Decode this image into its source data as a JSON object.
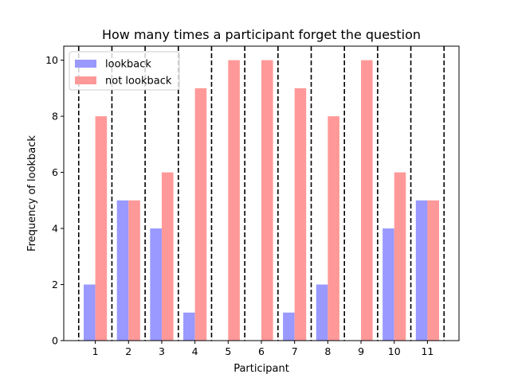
{
  "chart_data": {
    "type": "bar",
    "title": "How many times a participant forget the question",
    "xlabel": "Participant",
    "ylabel": "Frequency of lookback",
    "categories": [
      "1",
      "2",
      "3",
      "4",
      "5",
      "6",
      "7",
      "8",
      "9",
      "10",
      "11"
    ],
    "series": [
      {
        "name": "lookback",
        "values": [
          2,
          5,
          4,
          1,
          0,
          0,
          1,
          2,
          0,
          4,
          5
        ],
        "color": "#9999ff"
      },
      {
        "name": "not lookback",
        "values": [
          8,
          5,
          6,
          9,
          10,
          10,
          9,
          8,
          10,
          6,
          5
        ],
        "color": "#ff9999"
      }
    ],
    "yticks": [
      0,
      2,
      4,
      6,
      8,
      10
    ],
    "ylim": [
      0,
      10.5
    ],
    "grid": false,
    "legend": "top-left",
    "separators": "dashed black vertical lines between participants"
  }
}
